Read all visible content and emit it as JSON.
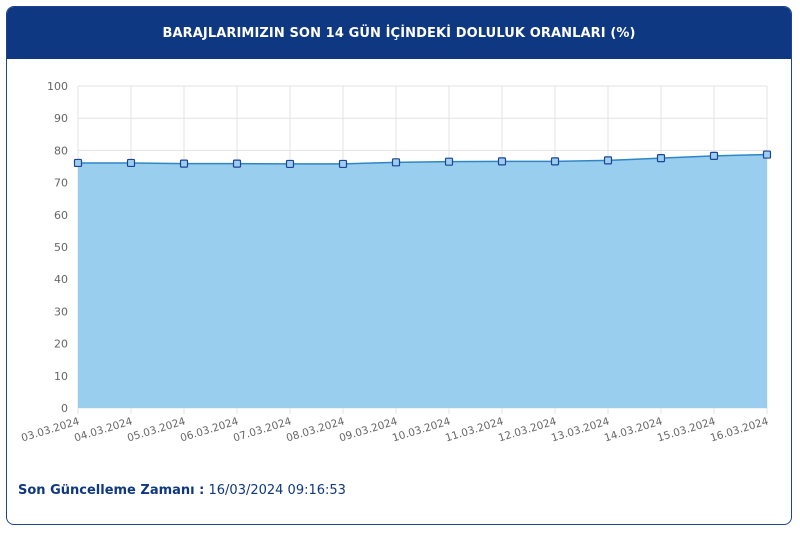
{
  "header": {
    "title": "BARAJLARIMIZIN SON 14 GÜN İÇİNDEKİ DOLULUK ORANLARI (%)"
  },
  "footer": {
    "label": "Son Güncelleme Zamanı :",
    "value": "16/03/2024 09:16:53"
  },
  "colors": {
    "header_bg": "#0f3883",
    "area_fill": "#99ceee",
    "line": "#2f86c5",
    "marker_fill": "#9dcdf0",
    "marker_stroke": "#1d4592",
    "grid": "#e3e3e3"
  },
  "chart_data": {
    "type": "area",
    "categories": [
      "03.03.2024",
      "04.03.2024",
      "05.03.2024",
      "06.03.2024",
      "07.03.2024",
      "08.03.2024",
      "09.03.2024",
      "10.03.2024",
      "11.03.2024",
      "12.03.2024",
      "13.03.2024",
      "14.03.2024",
      "15.03.2024",
      "16.03.2024"
    ],
    "series": [
      {
        "values": [
          76.1,
          76.1,
          75.9,
          75.9,
          75.8,
          75.8,
          76.3,
          76.5,
          76.6,
          76.6,
          76.9,
          77.6,
          78.3,
          78.7
        ]
      }
    ],
    "yticks": [
      "0",
      "10",
      "20",
      "30",
      "40",
      "50",
      "60",
      "70",
      "80",
      "90",
      "100"
    ],
    "ylim": [
      0,
      100
    ],
    "grid": true,
    "legend": "none"
  }
}
